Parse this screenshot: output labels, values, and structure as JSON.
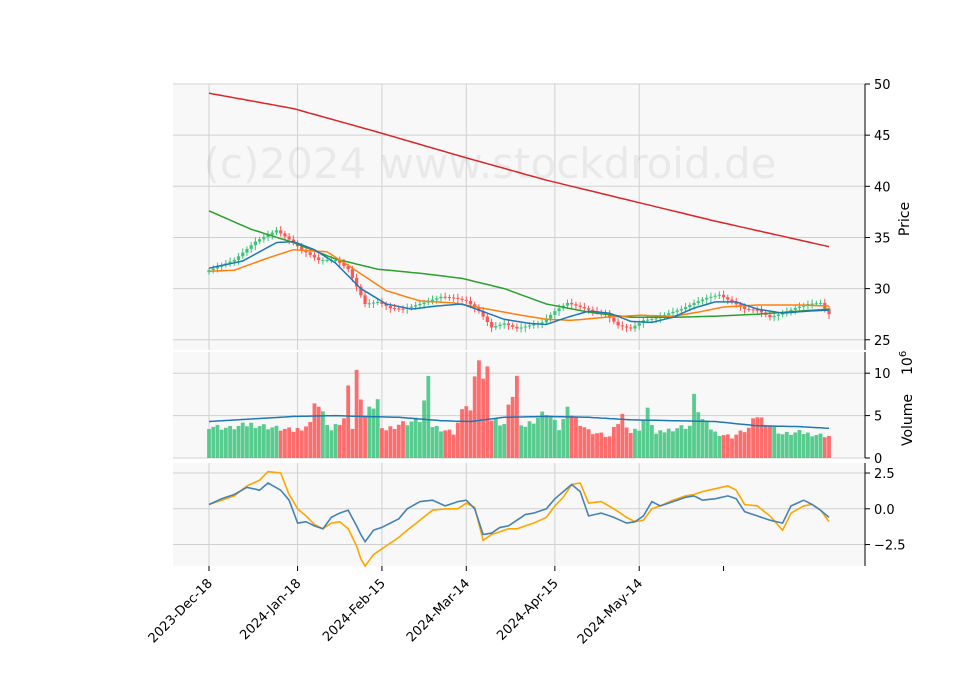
{
  "watermark": "(c)2024 www.stockdroid.de",
  "colors": {
    "panel_bg": "#f8f8f8",
    "grid": "#d0d0d0",
    "up": "#3cc47c",
    "down": "#ff5555",
    "sma200": "#d62728",
    "sma100": "#2ca02c",
    "sma50": "#ff7f0e",
    "sma20": "#1f77b4",
    "vol_ma": "#1f77b4",
    "osc_fast": "#4682b4",
    "osc_slow": "#ffa500"
  },
  "chart_data": [
    {
      "type": "candlestick",
      "panel": "price",
      "ylabel": "Price",
      "ylim": [
        24,
        50
      ],
      "yticks": [
        25,
        30,
        35,
        40,
        45,
        50
      ],
      "x_start": "2023-12-18",
      "x_end": "2024-06-14",
      "xtick_labels": [
        "2023-Dec-18",
        "2024-Jan-18",
        "2024-Feb-15",
        "2024-Mar-14",
        "2024-Apr-15",
        "2024-May-14"
      ],
      "close_anchors": [
        [
          0,
          31.8
        ],
        [
          6,
          32.8
        ],
        [
          11,
          34.6
        ],
        [
          16,
          35.7
        ],
        [
          19,
          34.8
        ],
        [
          22,
          33.8
        ],
        [
          26,
          32.8
        ],
        [
          30,
          32.8
        ],
        [
          33,
          31.9
        ],
        [
          37,
          28.5
        ],
        [
          40,
          28.7
        ],
        [
          43,
          28.1
        ],
        [
          46,
          28.0
        ],
        [
          50,
          28.5
        ],
        [
          55,
          29.2
        ],
        [
          58,
          29.1
        ],
        [
          61,
          28.8
        ],
        [
          64,
          27.8
        ],
        [
          67,
          26.2
        ],
        [
          70,
          26.6
        ],
        [
          73,
          26.1
        ],
        [
          76,
          26.4
        ],
        [
          79,
          26.7
        ],
        [
          82,
          27.8
        ],
        [
          85,
          28.6
        ],
        [
          88,
          28.2
        ],
        [
          91,
          27.8
        ],
        [
          94,
          27.5
        ],
        [
          97,
          26.4
        ],
        [
          100,
          26.1
        ],
        [
          103,
          26.9
        ],
        [
          106,
          27.1
        ],
        [
          109,
          27.6
        ],
        [
          112,
          28.0
        ],
        [
          115,
          28.6
        ],
        [
          118,
          29.1
        ],
        [
          121,
          29.4
        ],
        [
          124,
          28.7
        ],
        [
          127,
          28.0
        ],
        [
          130,
          27.9
        ],
        [
          133,
          27.2
        ],
        [
          136,
          27.6
        ],
        [
          139,
          28.1
        ],
        [
          142,
          28.5
        ],
        [
          145,
          28.6
        ],
        [
          147,
          27.5
        ]
      ],
      "sma20_anchors": [
        [
          0,
          32.0
        ],
        [
          8,
          32.7
        ],
        [
          16,
          34.5
        ],
        [
          20,
          34.6
        ],
        [
          25,
          33.8
        ],
        [
          30,
          32.5
        ],
        [
          36,
          30.0
        ],
        [
          42,
          28.5
        ],
        [
          48,
          28.0
        ],
        [
          54,
          28.3
        ],
        [
          60,
          28.5
        ],
        [
          64,
          27.9
        ],
        [
          70,
          27.0
        ],
        [
          76,
          26.6
        ],
        [
          80,
          26.5
        ],
        [
          85,
          27.2
        ],
        [
          90,
          27.8
        ],
        [
          95,
          27.6
        ],
        [
          100,
          26.8
        ],
        [
          105,
          26.7
        ],
        [
          110,
          27.2
        ],
        [
          115,
          28.1
        ],
        [
          120,
          28.7
        ],
        [
          125,
          28.7
        ],
        [
          130,
          28.0
        ],
        [
          136,
          27.6
        ],
        [
          142,
          27.8
        ],
        [
          147,
          27.9
        ]
      ],
      "sma50_anchors": [
        [
          0,
          31.7
        ],
        [
          6,
          31.8
        ],
        [
          14,
          33.0
        ],
        [
          20,
          33.8
        ],
        [
          28,
          33.6
        ],
        [
          34,
          32.0
        ],
        [
          42,
          29.8
        ],
        [
          50,
          28.8
        ],
        [
          58,
          28.6
        ],
        [
          66,
          28.0
        ],
        [
          74,
          27.4
        ],
        [
          80,
          27.0
        ],
        [
          86,
          26.9
        ],
        [
          94,
          27.2
        ],
        [
          102,
          27.4
        ],
        [
          110,
          27.3
        ],
        [
          116,
          27.7
        ],
        [
          122,
          28.2
        ],
        [
          130,
          28.4
        ],
        [
          140,
          28.4
        ],
        [
          147,
          28.3
        ]
      ],
      "sma100_anchors": [
        [
          0,
          37.6
        ],
        [
          10,
          35.8
        ],
        [
          20,
          34.5
        ],
        [
          30,
          32.9
        ],
        [
          40,
          31.9
        ],
        [
          50,
          31.5
        ],
        [
          60,
          31.0
        ],
        [
          70,
          30.0
        ],
        [
          80,
          28.5
        ],
        [
          90,
          27.7
        ],
        [
          100,
          27.2
        ],
        [
          110,
          27.2
        ],
        [
          120,
          27.3
        ],
        [
          130,
          27.5
        ],
        [
          140,
          27.8
        ],
        [
          147,
          28.0
        ]
      ],
      "sma200_anchors": [
        [
          0,
          49.1
        ],
        [
          20,
          47.6
        ],
        [
          40,
          45.3
        ],
        [
          60,
          42.9
        ],
        [
          80,
          40.6
        ],
        [
          100,
          38.6
        ],
        [
          120,
          36.6
        ],
        [
          147,
          34.1
        ]
      ]
    },
    {
      "type": "bar",
      "panel": "volume",
      "ylabel": "Volume",
      "scale_label": "10^6",
      "ylim": [
        0,
        12.5
      ],
      "yticks": [
        0,
        5,
        10
      ],
      "volume_anchors": [
        [
          0,
          3.8
        ],
        [
          5,
          3.5
        ],
        [
          10,
          4.0
        ],
        [
          20,
          3.2
        ],
        [
          24,
          4.0
        ],
        [
          25,
          7.0
        ],
        [
          29,
          3.2
        ],
        [
          32,
          4.5
        ],
        [
          33,
          9.5
        ],
        [
          34,
          3.5
        ],
        [
          35,
          9.8
        ],
        [
          36,
          7.5
        ],
        [
          37,
          5.0
        ],
        [
          40,
          6.8
        ],
        [
          41,
          3.2
        ],
        [
          45,
          4.0
        ],
        [
          50,
          4.5
        ],
        [
          52,
          8.8
        ],
        [
          53,
          3.8
        ],
        [
          58,
          3.0
        ],
        [
          61,
          6.5
        ],
        [
          62,
          5.5
        ],
        [
          64,
          12.0
        ],
        [
          65,
          9.0
        ],
        [
          66,
          12.0
        ],
        [
          67,
          4.5
        ],
        [
          70,
          4.0
        ],
        [
          73,
          9.5
        ],
        [
          74,
          3.5
        ],
        [
          80,
          5.5
        ],
        [
          83,
          3.5
        ],
        [
          85,
          5.5
        ],
        [
          86,
          5.2
        ],
        [
          90,
          3.2
        ],
        [
          95,
          2.5
        ],
        [
          98,
          5.0
        ],
        [
          100,
          3.0
        ],
        [
          102,
          3.5
        ],
        [
          104,
          5.5
        ],
        [
          106,
          2.8
        ],
        [
          110,
          3.5
        ],
        [
          114,
          3.8
        ],
        [
          115,
          7.0
        ],
        [
          117,
          4.5
        ],
        [
          120,
          3.0
        ],
        [
          124,
          2.5
        ],
        [
          128,
          3.5
        ],
        [
          130,
          5.0
        ],
        [
          133,
          3.8
        ],
        [
          136,
          2.8
        ],
        [
          140,
          3.0
        ],
        [
          147,
          2.6
        ]
      ],
      "vol_ma_anchors": [
        [
          0,
          4.3
        ],
        [
          10,
          4.6
        ],
        [
          20,
          4.9
        ],
        [
          30,
          5.0
        ],
        [
          36,
          4.9
        ],
        [
          45,
          4.8
        ],
        [
          55,
          4.4
        ],
        [
          62,
          4.3
        ],
        [
          70,
          4.8
        ],
        [
          80,
          4.9
        ],
        [
          90,
          4.8
        ],
        [
          100,
          4.5
        ],
        [
          110,
          4.4
        ],
        [
          120,
          4.3
        ],
        [
          130,
          3.8
        ],
        [
          140,
          3.7
        ],
        [
          147,
          3.5
        ]
      ],
      "down_days_mod": [
        0,
        2,
        5
      ]
    },
    {
      "type": "line",
      "panel": "oscillator",
      "ylim": [
        -4.0,
        3.2
      ],
      "yticks": [
        -2.5,
        0.0,
        2.5
      ],
      "ytick_labels": [
        "−2.5",
        "0.0",
        "2.5"
      ],
      "fast_anchors": [
        [
          0,
          0.3
        ],
        [
          3,
          0.7
        ],
        [
          6,
          1.0
        ],
        [
          9,
          1.5
        ],
        [
          12,
          1.3
        ],
        [
          14,
          1.8
        ],
        [
          17,
          1.3
        ],
        [
          19,
          0.6
        ],
        [
          21,
          -1.0
        ],
        [
          23,
          -0.9
        ],
        [
          25,
          -1.2
        ],
        [
          27,
          -1.4
        ],
        [
          29,
          -0.6
        ],
        [
          31,
          -0.3
        ],
        [
          33,
          -0.1
        ],
        [
          35,
          -1.2
        ],
        [
          36,
          -1.8
        ],
        [
          37,
          -2.3
        ],
        [
          39,
          -1.5
        ],
        [
          41,
          -1.3
        ],
        [
          43,
          -1.0
        ],
        [
          45,
          -0.7
        ],
        [
          47,
          0.0
        ],
        [
          50,
          0.5
        ],
        [
          53,
          0.6
        ],
        [
          56,
          0.2
        ],
        [
          59,
          0.5
        ],
        [
          61,
          0.6
        ],
        [
          63,
          0.0
        ],
        [
          65,
          -1.8
        ],
        [
          67,
          -1.7
        ],
        [
          69,
          -1.3
        ],
        [
          71,
          -1.2
        ],
        [
          73,
          -0.8
        ],
        [
          75,
          -0.4
        ],
        [
          77,
          -0.3
        ],
        [
          80,
          0.0
        ],
        [
          82,
          0.7
        ],
        [
          84,
          1.2
        ],
        [
          86,
          1.7
        ],
        [
          88,
          1.2
        ],
        [
          90,
          -0.5
        ],
        [
          93,
          -0.3
        ],
        [
          96,
          -0.6
        ],
        [
          99,
          -1.0
        ],
        [
          101,
          -0.9
        ],
        [
          103,
          -0.5
        ],
        [
          105,
          0.5
        ],
        [
          107,
          0.2
        ],
        [
          110,
          0.5
        ],
        [
          113,
          0.8
        ],
        [
          115,
          0.9
        ],
        [
          117,
          0.6
        ],
        [
          120,
          0.7
        ],
        [
          123,
          0.9
        ],
        [
          125,
          0.7
        ],
        [
          127,
          -0.2
        ],
        [
          130,
          -0.5
        ],
        [
          133,
          -0.8
        ],
        [
          136,
          -1.0
        ],
        [
          138,
          0.2
        ],
        [
          141,
          0.6
        ],
        [
          143,
          0.3
        ],
        [
          145,
          -0.1
        ],
        [
          147,
          -0.6
        ]
      ],
      "slow_anchors": [
        [
          0,
          0.3
        ],
        [
          3,
          0.6
        ],
        [
          6,
          0.9
        ],
        [
          9,
          1.6
        ],
        [
          12,
          2.0
        ],
        [
          14,
          2.6
        ],
        [
          17,
          2.5
        ],
        [
          19,
          1.0
        ],
        [
          21,
          0.0
        ],
        [
          23,
          -0.5
        ],
        [
          25,
          -1.1
        ],
        [
          27,
          -1.4
        ],
        [
          29,
          -1.0
        ],
        [
          31,
          -0.9
        ],
        [
          33,
          -1.4
        ],
        [
          35,
          -2.6
        ],
        [
          36,
          -3.5
        ],
        [
          37,
          -4.0
        ],
        [
          39,
          -3.2
        ],
        [
          41,
          -2.8
        ],
        [
          43,
          -2.4
        ],
        [
          45,
          -2.0
        ],
        [
          47,
          -1.5
        ],
        [
          50,
          -0.8
        ],
        [
          53,
          -0.1
        ],
        [
          56,
          0.0
        ],
        [
          59,
          0.0
        ],
        [
          61,
          0.4
        ],
        [
          63,
          0.1
        ],
        [
          65,
          -2.2
        ],
        [
          67,
          -1.8
        ],
        [
          69,
          -1.6
        ],
        [
          71,
          -1.4
        ],
        [
          73,
          -1.4
        ],
        [
          75,
          -1.2
        ],
        [
          77,
          -1.0
        ],
        [
          80,
          -0.6
        ],
        [
          82,
          0.2
        ],
        [
          84,
          0.8
        ],
        [
          86,
          1.7
        ],
        [
          88,
          1.8
        ],
        [
          90,
          0.4
        ],
        [
          93,
          0.5
        ],
        [
          96,
          0.0
        ],
        [
          99,
          -0.6
        ],
        [
          101,
          -0.9
        ],
        [
          103,
          -0.8
        ],
        [
          105,
          0.0
        ],
        [
          107,
          0.2
        ],
        [
          110,
          0.6
        ],
        [
          113,
          0.9
        ],
        [
          115,
          1.0
        ],
        [
          117,
          1.2
        ],
        [
          120,
          1.4
        ],
        [
          123,
          1.6
        ],
        [
          125,
          1.3
        ],
        [
          127,
          0.3
        ],
        [
          130,
          0.2
        ],
        [
          133,
          -0.5
        ],
        [
          136,
          -1.5
        ],
        [
          138,
          -0.3
        ],
        [
          141,
          0.2
        ],
        [
          143,
          0.3
        ],
        [
          145,
          -0.1
        ],
        [
          147,
          -0.9
        ]
      ]
    }
  ]
}
